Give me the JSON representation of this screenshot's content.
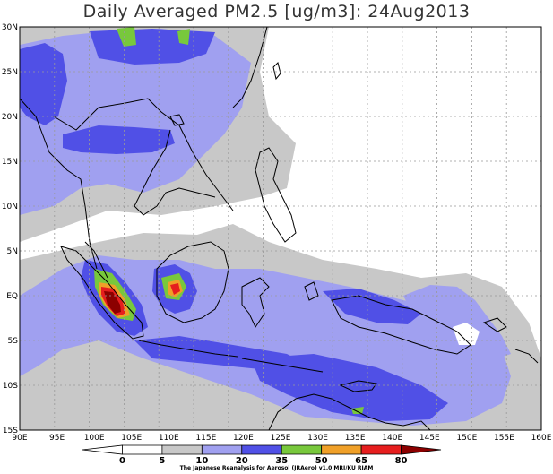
{
  "title": "Daily Averaged PM2.5 [ug/m3]: 24Aug2013",
  "credit": "The Japanese Reanalysis for Aerosol (JRAero) v1.0 MRI/KU RIAM",
  "axes": {
    "lat_labels": [
      "30N",
      "25N",
      "20N",
      "15N",
      "10N",
      "5N",
      "EQ",
      "5S",
      "10S",
      "15S"
    ],
    "lon_labels": [
      "90E",
      "95E",
      "100E",
      "105E",
      "110E",
      "115E",
      "120E",
      "125E",
      "130E",
      "135E",
      "140E",
      "145E",
      "150E",
      "155E",
      "160E"
    ]
  },
  "colorbar": {
    "levels": [
      "0",
      "5",
      "10",
      "20",
      "35",
      "50",
      "65",
      "80"
    ],
    "colors": [
      "#ffffff",
      "#ffffff",
      "#c8c8c8",
      "#a0a0f0",
      "#5050e6",
      "#78c83c",
      "#f0a028",
      "#e61e1e",
      "#8c0000"
    ]
  }
}
